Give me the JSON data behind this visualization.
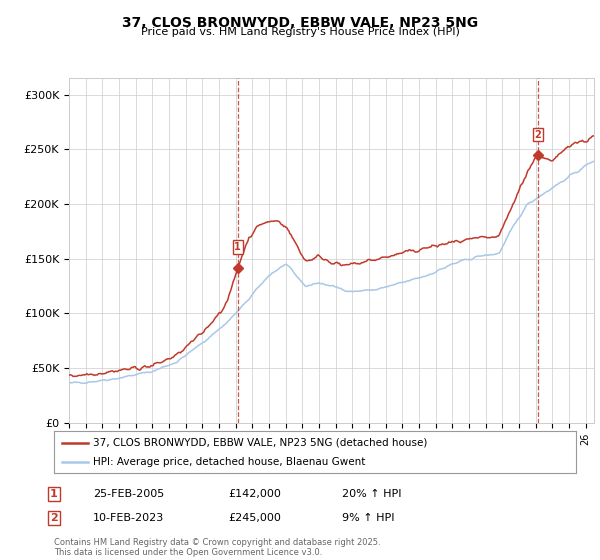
{
  "title": "37, CLOS BRONWYDD, EBBW VALE, NP23 5NG",
  "subtitle": "Price paid vs. HM Land Registry's House Price Index (HPI)",
  "ylabel_ticks": [
    "£0",
    "£50K",
    "£100K",
    "£150K",
    "£200K",
    "£250K",
    "£300K"
  ],
  "ytick_values": [
    0,
    50000,
    100000,
    150000,
    200000,
    250000,
    300000
  ],
  "ylim": [
    0,
    315000
  ],
  "xlim_start": 1995.0,
  "xlim_end": 2026.5,
  "hpi_color": "#a8c8e8",
  "price_color": "#c0392b",
  "transaction1_x": 2005.12,
  "transaction1_price": 142000,
  "transaction2_x": 2023.12,
  "transaction2_price": 245000,
  "legend_label1": "37, CLOS BRONWYDD, EBBW VALE, NP23 5NG (detached house)",
  "legend_label2": "HPI: Average price, detached house, Blaenau Gwent",
  "footer": "Contains HM Land Registry data © Crown copyright and database right 2025.\nThis data is licensed under the Open Government Licence v3.0.",
  "bg_color": "#ffffff",
  "grid_color": "#cccccc",
  "table_row1": [
    "1",
    "25-FEB-2005",
    "£142,000",
    "20% ↑ HPI"
  ],
  "table_row2": [
    "2",
    "10-FEB-2023",
    "£245,000",
    "9% ↑ HPI"
  ]
}
